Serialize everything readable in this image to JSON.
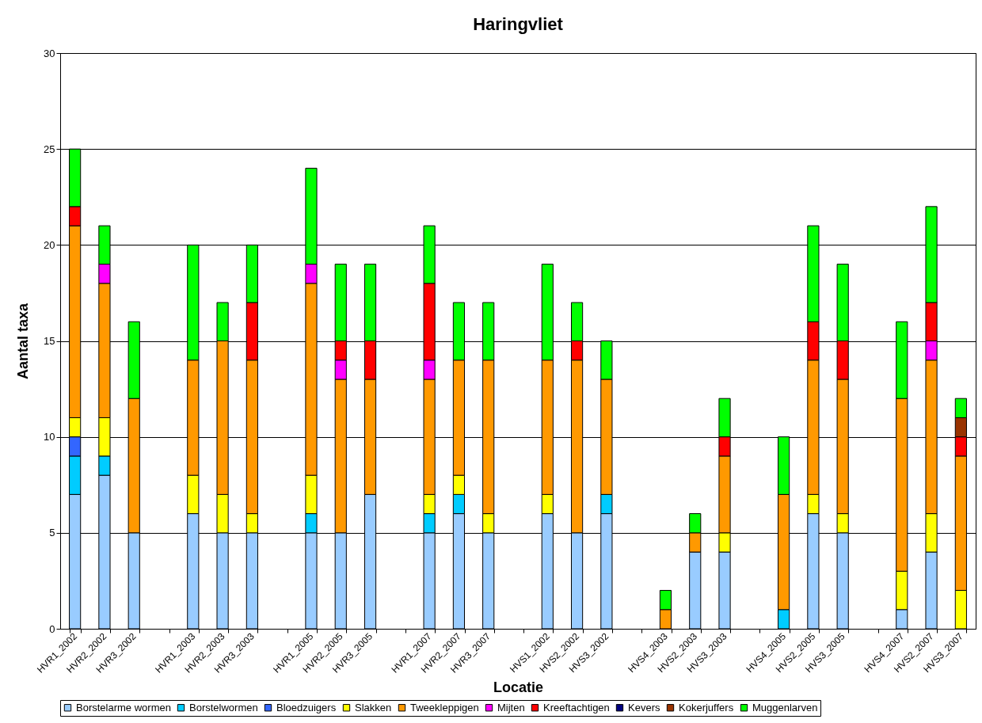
{
  "chart_data": {
    "type": "bar",
    "stacked": true,
    "title": "Haringvliet",
    "xlabel": "Locatie",
    "ylabel": "Aantal taxa",
    "categories": [
      "HVR1_2002",
      "HVR2_2002",
      "HVR3_2002",
      null,
      "HVR1_2003",
      "HVR2_2003",
      "HVR3_2003",
      null,
      "HVR1_2005",
      "HVR2_2005",
      "HVR3_2005",
      null,
      "HVR1_2007",
      "HVR2_2007",
      "HVR3_2007",
      null,
      "HVS1_2002",
      "HVS2_2002",
      "HVS3_2002",
      null,
      "HVS4_2003",
      "HVS2_2003",
      "HVS3_2003",
      null,
      "HVS4_2005",
      "HVS2_2005",
      "HVS3_2005",
      null,
      "HVS4_2007",
      "HVS2_2007",
      "HVS3_2007"
    ],
    "series": [
      {
        "name": "Borstelarme wormen",
        "color": "#99ccff",
        "values": [
          7,
          8,
          5,
          null,
          6,
          5,
          5,
          null,
          5,
          5,
          7,
          null,
          5,
          6,
          5,
          null,
          6,
          5,
          6,
          null,
          0,
          4,
          4,
          null,
          0,
          6,
          5,
          null,
          1,
          4,
          0
        ]
      },
      {
        "name": "Borstelwormen",
        "color": "#00ccff",
        "values": [
          2,
          1,
          0,
          null,
          0,
          0,
          0,
          null,
          1,
          0,
          0,
          null,
          1,
          1,
          0,
          null,
          0,
          0,
          1,
          null,
          0,
          0,
          0,
          null,
          1,
          0,
          0,
          null,
          0,
          0,
          0
        ]
      },
      {
        "name": "Bloedzuigers",
        "color": "#3366ff",
        "values": [
          1,
          0,
          0,
          null,
          0,
          0,
          0,
          null,
          0,
          0,
          0,
          null,
          0,
          0,
          0,
          null,
          0,
          0,
          0,
          null,
          0,
          0,
          0,
          null,
          0,
          0,
          0,
          null,
          0,
          0,
          0
        ]
      },
      {
        "name": "Slakken",
        "color": "#ffff00",
        "values": [
          1,
          2,
          0,
          null,
          2,
          2,
          1,
          null,
          2,
          0,
          0,
          null,
          1,
          1,
          1,
          null,
          1,
          0,
          0,
          null,
          0,
          0,
          1,
          null,
          0,
          1,
          1,
          null,
          2,
          2,
          2
        ]
      },
      {
        "name": "Tweekleppigen",
        "color": "#ff9900",
        "values": [
          10,
          7,
          7,
          null,
          6,
          8,
          8,
          null,
          10,
          8,
          6,
          null,
          6,
          6,
          8,
          null,
          7,
          9,
          6,
          null,
          1,
          1,
          4,
          null,
          6,
          7,
          7,
          null,
          9,
          8,
          7
        ]
      },
      {
        "name": "Mijten",
        "color": "#ff00ff",
        "values": [
          0,
          1,
          0,
          null,
          0,
          0,
          0,
          null,
          1,
          1,
          0,
          null,
          1,
          0,
          0,
          null,
          0,
          0,
          0,
          null,
          0,
          0,
          0,
          null,
          0,
          0,
          0,
          null,
          0,
          1,
          0
        ]
      },
      {
        "name": "Kreeftachtigen",
        "color": "#ff0000",
        "values": [
          1,
          0,
          0,
          null,
          0,
          0,
          3,
          null,
          0,
          1,
          2,
          null,
          4,
          0,
          0,
          null,
          0,
          1,
          0,
          null,
          0,
          0,
          1,
          null,
          0,
          2,
          2,
          null,
          0,
          2,
          1
        ]
      },
      {
        "name": "Kevers",
        "color": "#000080",
        "values": [
          0,
          0,
          0,
          null,
          0,
          0,
          0,
          null,
          0,
          0,
          0,
          null,
          0,
          0,
          0,
          null,
          0,
          0,
          0,
          null,
          0,
          0,
          0,
          null,
          0,
          0,
          0,
          null,
          0,
          0,
          0
        ]
      },
      {
        "name": "Kokerjuffers",
        "color": "#993300",
        "values": [
          0,
          0,
          0,
          null,
          0,
          0,
          0,
          null,
          0,
          0,
          0,
          null,
          0,
          0,
          0,
          null,
          0,
          0,
          0,
          null,
          0,
          0,
          0,
          null,
          0,
          0,
          0,
          null,
          0,
          0,
          1
        ]
      },
      {
        "name": "Muggenlarven",
        "color": "#00ff00",
        "values": [
          3,
          2,
          4,
          null,
          6,
          2,
          3,
          null,
          5,
          4,
          4,
          null,
          3,
          3,
          3,
          null,
          5,
          2,
          2,
          null,
          1,
          1,
          2,
          null,
          3,
          5,
          4,
          null,
          4,
          5,
          1
        ]
      }
    ],
    "ylim": [
      0,
      30
    ],
    "yticks": [
      0,
      5,
      10,
      15,
      20,
      25,
      30
    ],
    "grid": "y",
    "legend": "bottom"
  }
}
